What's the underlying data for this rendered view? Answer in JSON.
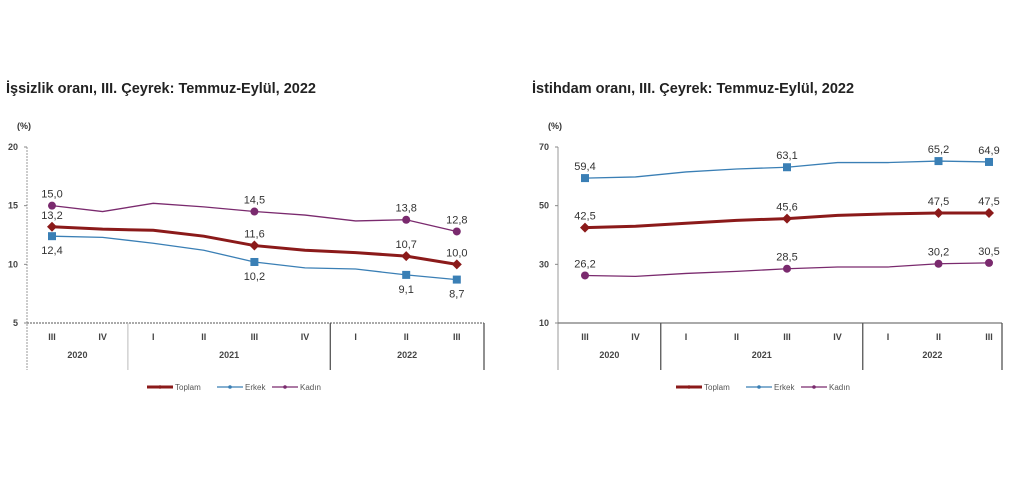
{
  "chart_data": [
    {
      "type": "line",
      "title": "İşsizlik oranı, III. Çeyrek: Temmuz-Eylül, 2022",
      "ylabel": "(%)",
      "ylim": [
        5,
        20
      ],
      "yticks": [
        5,
        10,
        15,
        20
      ],
      "categories": [
        "III",
        "IV",
        "I",
        "II",
        "III",
        "IV",
        "I",
        "II",
        "III"
      ],
      "year_groups": [
        {
          "label": "2020",
          "span": 2
        },
        {
          "label": "2021",
          "span": 4
        },
        {
          "label": "2022",
          "span": 3
        }
      ],
      "legend_position": "bottom",
      "series": [
        {
          "name": "Toplam",
          "color": "#8b1a1a",
          "values": [
            13.2,
            13.0,
            12.9,
            12.4,
            11.6,
            11.2,
            11.0,
            10.7,
            10.0
          ],
          "labels": [
            "13,2",
            null,
            null,
            null,
            "11,6",
            null,
            null,
            "10,7",
            "10,0"
          ],
          "label_pos": [
            "above",
            null,
            null,
            null,
            "above",
            null,
            null,
            "above",
            "above"
          ]
        },
        {
          "name": "Erkek",
          "color": "#3a7fb5",
          "values": [
            12.4,
            12.3,
            11.8,
            11.2,
            10.2,
            9.7,
            9.6,
            9.1,
            8.7
          ],
          "labels": [
            "12,4",
            null,
            null,
            null,
            "10,2",
            null,
            null,
            "9,1",
            "8,7"
          ],
          "label_pos": [
            "below",
            null,
            null,
            null,
            "below",
            null,
            null,
            "below",
            "below"
          ]
        },
        {
          "name": "Kadın",
          "color": "#7a2a6e",
          "values": [
            15.0,
            14.5,
            15.2,
            14.9,
            14.5,
            14.2,
            13.7,
            13.8,
            12.8
          ],
          "labels": [
            "15,0",
            null,
            null,
            null,
            "14,5",
            null,
            null,
            "13,8",
            "12,8"
          ],
          "label_pos": [
            "above",
            null,
            null,
            null,
            "above",
            null,
            null,
            "above",
            "above"
          ]
        }
      ]
    },
    {
      "type": "line",
      "title": "İstihdam oranı, III. Çeyrek: Temmuz-Eylül, 2022",
      "ylabel": "(%)",
      "ylim": [
        10,
        70
      ],
      "yticks": [
        10,
        30,
        50,
        70
      ],
      "categories": [
        "III",
        "IV",
        "I",
        "II",
        "III",
        "IV",
        "I",
        "II",
        "III"
      ],
      "year_groups": [
        {
          "label": "2020",
          "span": 2
        },
        {
          "label": "2021",
          "span": 4
        },
        {
          "label": "2022",
          "span": 3
        }
      ],
      "legend_position": "bottom",
      "series": [
        {
          "name": "Toplam",
          "color": "#8b1a1a",
          "values": [
            42.5,
            43.0,
            44.0,
            45.0,
            45.6,
            46.7,
            47.2,
            47.5,
            47.5
          ],
          "labels": [
            "42,5",
            null,
            null,
            null,
            "45,6",
            null,
            null,
            "47,5",
            "47,5"
          ],
          "label_pos": [
            "above",
            null,
            null,
            null,
            "above",
            null,
            null,
            "above",
            "above"
          ]
        },
        {
          "name": "Erkek",
          "color": "#3a7fb5",
          "values": [
            59.4,
            59.8,
            61.5,
            62.5,
            63.1,
            64.7,
            64.7,
            65.2,
            64.9
          ],
          "labels": [
            "59,4",
            null,
            null,
            null,
            "63,1",
            null,
            null,
            "65,2",
            "64,9"
          ],
          "label_pos": [
            "above",
            null,
            null,
            null,
            "above",
            null,
            null,
            "above",
            "above"
          ]
        },
        {
          "name": "Kadın",
          "color": "#7a2a6e",
          "values": [
            26.2,
            25.9,
            26.9,
            27.6,
            28.5,
            29.1,
            29.1,
            30.2,
            30.5
          ],
          "labels": [
            "26,2",
            null,
            null,
            null,
            "28,5",
            null,
            null,
            "30,2",
            "30,5"
          ],
          "label_pos": [
            "above",
            null,
            null,
            null,
            "above",
            null,
            null,
            "above",
            "above"
          ]
        }
      ]
    }
  ]
}
